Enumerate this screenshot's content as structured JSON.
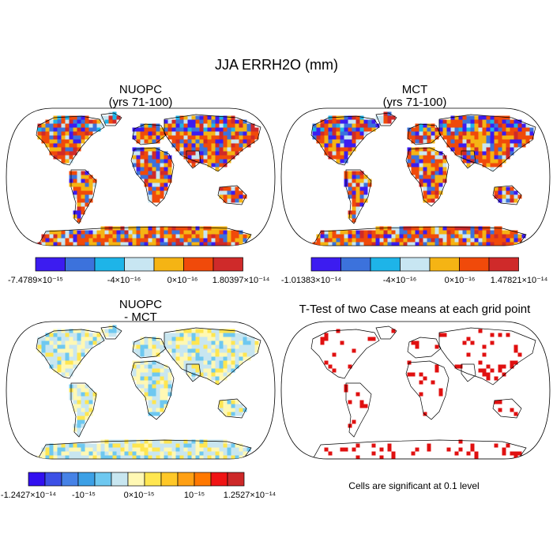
{
  "figure": {
    "title": "JJA ERRH2O (mm)",
    "footnote": "Cells are significant at 0.1 level"
  },
  "chart_data": [
    {
      "type": "heatmap",
      "panel": "top-left",
      "title_line1": "NUOPC",
      "title_line2": "(yrs 71-100)",
      "projection": "robinson world map",
      "colorbar": {
        "colors": [
          "#3c1cf0",
          "#3c72dc",
          "#1eb4e8",
          "#c8e6f2",
          "#f5b414",
          "#f04a0a",
          "#cf2a2a"
        ],
        "labels": [
          "-7.4789×10⁻¹⁵",
          "-4×10⁻¹⁶",
          "0×10⁻¹⁶",
          "1.80397×10⁻¹⁴"
        ]
      }
    },
    {
      "type": "heatmap",
      "panel": "top-right",
      "title_line1": "MCT",
      "title_line2": "(yrs 71-100)",
      "projection": "robinson world map",
      "colorbar": {
        "colors": [
          "#3c1cf0",
          "#3c72dc",
          "#1eb4e8",
          "#c8e6f2",
          "#f5b414",
          "#f04a0a",
          "#cf2a2a"
        ],
        "labels": [
          "-1.01383×10⁻¹⁴",
          "-4×10⁻¹⁶",
          "0×10⁻¹⁶",
          "1.47821×10⁻¹⁴"
        ]
      }
    },
    {
      "type": "heatmap",
      "panel": "bottom-left",
      "title_line1": "NUOPC",
      "title_line2": "- MCT",
      "projection": "robinson world map",
      "colorbar": {
        "colors": [
          "#3210f0",
          "#3c50e6",
          "#4682e6",
          "#3ca0e6",
          "#6ec8f0",
          "#c8e6f0",
          "#fff8b4",
          "#ffe650",
          "#ffc828",
          "#ffa014",
          "#ff7800",
          "#f01414",
          "#cd2828"
        ],
        "labels": [
          "-1.2427×10⁻¹⁴",
          "-10⁻¹⁵",
          "0×10⁻¹⁵",
          "10⁻¹⁵",
          "1.2527×10⁻¹⁴"
        ]
      }
    },
    {
      "type": "heatmap",
      "panel": "bottom-right",
      "title_line1": "T-Test of two Case means at each grid point",
      "projection": "robinson world map",
      "significant_color": "#e01010"
    }
  ]
}
